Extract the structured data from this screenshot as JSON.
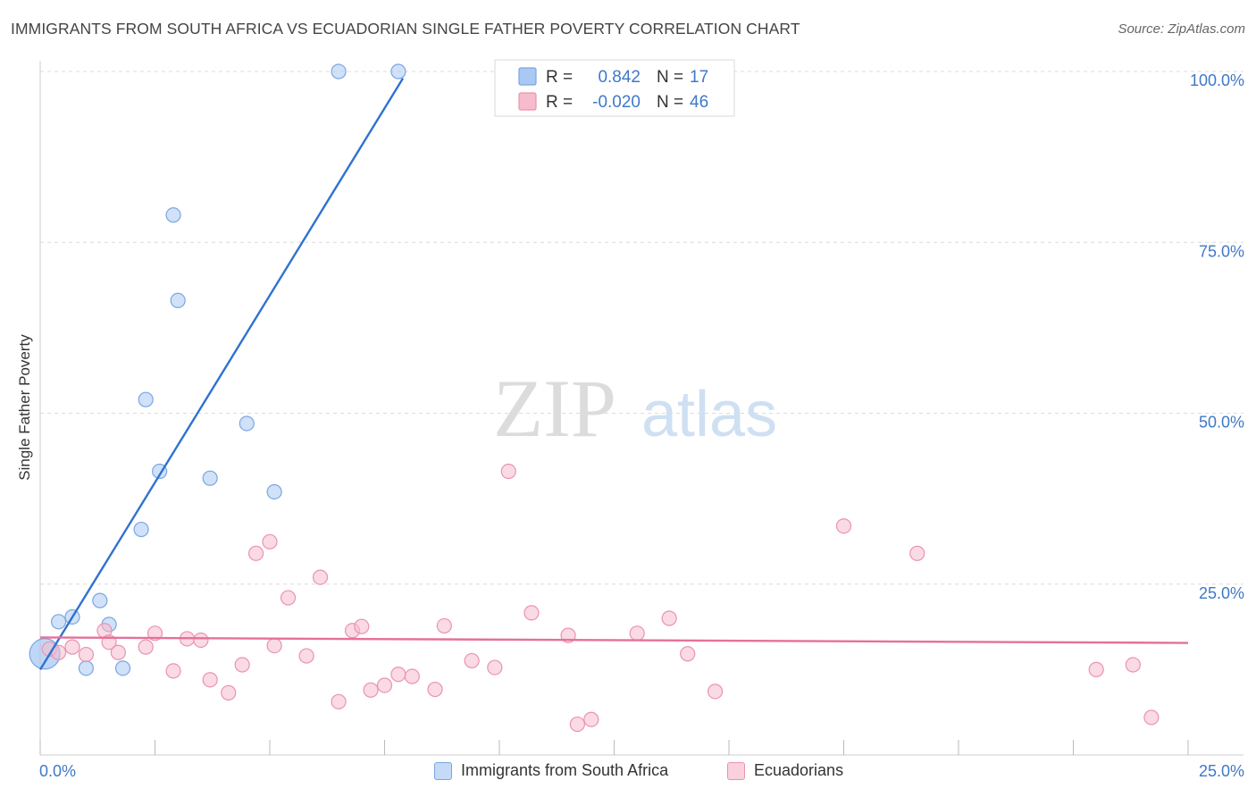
{
  "title": "IMMIGRANTS FROM SOUTH AFRICA VS ECUADORIAN SINGLE FATHER POVERTY CORRELATION CHART",
  "source": "Source: ZipAtlas.com",
  "watermark": {
    "zip": "ZIP",
    "atlas": "atlas"
  },
  "colors": {
    "blue_fill": "#a9c9f3",
    "blue_stroke": "#7aa6e0",
    "blue_line": "#2f72d0",
    "pink_fill": "#f6bccd",
    "pink_stroke": "#ea93ae",
    "pink_line": "#e5709b",
    "axis_label": "#3f78c8",
    "grid": "#dcdcdc"
  },
  "legend_top": {
    "rows": [
      {
        "r_label": "R =",
        "r_value": "0.842",
        "n_label": "N =",
        "n_value": "17",
        "series": "blue"
      },
      {
        "r_label": "R =",
        "r_value": "-0.020",
        "n_label": "N =",
        "n_value": "46",
        "series": "pink"
      }
    ]
  },
  "legend_bottom": [
    {
      "label": "Immigrants from South Africa",
      "series": "blue"
    },
    {
      "label": "Ecuadorians",
      "series": "pink"
    }
  ],
  "chart_data": {
    "type": "scatter",
    "title": "IMMIGRANTS FROM SOUTH AFRICA VS ECUADORIAN SINGLE FATHER POVERTY CORRELATION CHART",
    "xlabel": "",
    "ylabel": "Single Father Poverty",
    "xlim": [
      0,
      25
    ],
    "ylim": [
      0,
      100
    ],
    "x_ticks": [
      "0.0%",
      "25.0%"
    ],
    "y_ticks": [
      "25.0%",
      "50.0%",
      "75.0%",
      "100.0%"
    ],
    "y_tick_values": [
      25,
      50,
      75,
      100
    ],
    "grid": true,
    "legend": "top-center",
    "series": [
      {
        "name": "Immigrants from South Africa",
        "color": "blue",
        "points": [
          [
            0.1,
            14.8
          ],
          [
            0.4,
            19.5
          ],
          [
            0.7,
            20.2
          ],
          [
            1.0,
            12.7
          ],
          [
            1.3,
            22.6
          ],
          [
            1.5,
            19.1
          ],
          [
            1.8,
            12.7
          ],
          [
            2.2,
            33.0
          ],
          [
            2.3,
            52.0
          ],
          [
            2.6,
            41.5
          ],
          [
            2.9,
            79.0
          ],
          [
            3.0,
            66.5
          ],
          [
            3.7,
            40.5
          ],
          [
            4.5,
            48.5
          ],
          [
            5.1,
            38.5
          ],
          [
            6.5,
            100.0
          ],
          [
            7.8,
            100.0
          ]
        ],
        "trend": {
          "x1": 0.0,
          "y1": 12.5,
          "x2": 7.9,
          "y2": 99.0
        }
      },
      {
        "name": "Ecuadorians",
        "color": "pink",
        "points": [
          [
            0.2,
            15.5
          ],
          [
            0.4,
            15.0
          ],
          [
            0.7,
            15.8
          ],
          [
            1.0,
            14.7
          ],
          [
            1.4,
            18.2
          ],
          [
            1.5,
            16.5
          ],
          [
            1.7,
            15.0
          ],
          [
            2.3,
            15.8
          ],
          [
            2.5,
            17.8
          ],
          [
            2.9,
            12.3
          ],
          [
            3.2,
            17.0
          ],
          [
            3.5,
            16.8
          ],
          [
            3.7,
            11.0
          ],
          [
            4.1,
            9.1
          ],
          [
            4.4,
            13.2
          ],
          [
            4.7,
            29.5
          ],
          [
            5.0,
            31.2
          ],
          [
            5.1,
            16.0
          ],
          [
            5.4,
            23.0
          ],
          [
            5.8,
            14.5
          ],
          [
            6.1,
            26.0
          ],
          [
            6.5,
            7.8
          ],
          [
            6.8,
            18.2
          ],
          [
            7.0,
            18.8
          ],
          [
            7.2,
            9.5
          ],
          [
            7.5,
            10.2
          ],
          [
            7.8,
            11.8
          ],
          [
            8.1,
            11.5
          ],
          [
            8.6,
            9.6
          ],
          [
            8.8,
            18.9
          ],
          [
            9.4,
            13.8
          ],
          [
            9.9,
            12.8
          ],
          [
            10.2,
            41.5
          ],
          [
            10.7,
            20.8
          ],
          [
            11.5,
            17.5
          ],
          [
            11.7,
            4.5
          ],
          [
            12.0,
            5.2
          ],
          [
            13.0,
            17.8
          ],
          [
            13.7,
            20.0
          ],
          [
            14.1,
            14.8
          ],
          [
            14.7,
            9.3
          ],
          [
            17.5,
            33.5
          ],
          [
            19.1,
            29.5
          ],
          [
            23.0,
            12.5
          ],
          [
            23.8,
            13.2
          ],
          [
            24.2,
            5.5
          ]
        ],
        "trend": {
          "x1": 0.0,
          "y1": 17.2,
          "x2": 25.0,
          "y2": 16.4
        }
      }
    ]
  }
}
